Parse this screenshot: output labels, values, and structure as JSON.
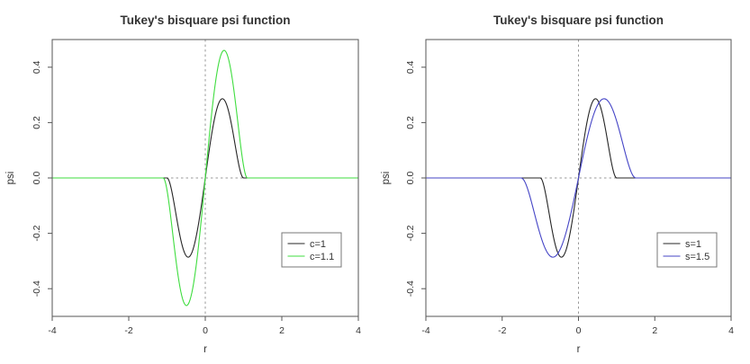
{
  "window": {
    "background": "#ffffff"
  },
  "chart_data": [
    {
      "panel": "left",
      "type": "line",
      "title": "Tukey's bisquare psi function",
      "xlabel": "r",
      "ylabel": "psi",
      "xlim": [
        -4,
        4
      ],
      "ylim": [
        -0.5,
        0.5
      ],
      "x_ticks": [
        -4,
        -2,
        0,
        2,
        4
      ],
      "x_tick_labels": [
        "-4",
        "-2",
        "0",
        "2",
        "4"
      ],
      "y_ticks": [
        -0.4,
        -0.2,
        0.0,
        0.2,
        0.4
      ],
      "y_tick_labels": [
        "-0.4",
        "-0.2",
        "0.0",
        "0.2",
        "0.4"
      ],
      "grid": false,
      "reference_lines": [
        {
          "axis": "h",
          "value": 0,
          "style": "dashed",
          "color": "#999999"
        },
        {
          "axis": "v",
          "value": 0,
          "style": "dashed",
          "color": "#999999"
        }
      ],
      "function_family": "psi(r) = amp * r * (1 - (r/k)^2)^2 for |r| <= k, else 0",
      "series": [
        {
          "name": "c=1",
          "color": "#262626",
          "k": 1.0,
          "amp": 1.0,
          "peak": {
            "r": 0.447,
            "psi": 0.286
          },
          "odd_symmetry": true,
          "sample_points_r_ge_0": [
            [
              0,
              0
            ],
            [
              0.125,
              0.1211
            ],
            [
              0.25,
              0.2197
            ],
            [
              0.375,
              0.2769
            ],
            [
              0.447,
              0.2862
            ],
            [
              0.5,
              0.2813
            ],
            [
              0.625,
              0.2321
            ],
            [
              0.75,
              0.1436
            ],
            [
              0.875,
              0.0481
            ],
            [
              1.0,
              0
            ],
            [
              4.0,
              0
            ]
          ]
        },
        {
          "name": "c=1.1",
          "color": "#3fdd3f",
          "k": 1.1,
          "amp": 1.4641,
          "peak": {
            "r": 0.492,
            "psi": 0.461
          },
          "odd_symmetry": true,
          "sample_points_r_ge_0": [
            [
              0,
              0
            ],
            [
              0.1375,
              0.1951
            ],
            [
              0.275,
              0.3539
            ],
            [
              0.4125,
              0.446
            ],
            [
              0.492,
              0.4609
            ],
            [
              0.55,
              0.453
            ],
            [
              0.6875,
              0.3738
            ],
            [
              0.825,
              0.2312
            ],
            [
              0.9625,
              0.0774
            ],
            [
              1.1,
              0
            ],
            [
              4.0,
              0
            ]
          ]
        }
      ],
      "legend": {
        "position": "inside-right-lower",
        "entries": [
          {
            "label": "c=1",
            "color": "#262626"
          },
          {
            "label": "c=1.1",
            "color": "#3fdd3f"
          }
        ]
      }
    },
    {
      "panel": "right",
      "type": "line",
      "title": "Tukey's bisquare psi function",
      "xlabel": "r",
      "ylabel": "psi",
      "xlim": [
        -4,
        4
      ],
      "ylim": [
        -0.5,
        0.5
      ],
      "x_ticks": [
        -4,
        -2,
        0,
        2,
        4
      ],
      "x_tick_labels": [
        "-4",
        "-2",
        "0",
        "2",
        "4"
      ],
      "y_ticks": [
        -0.4,
        -0.2,
        0.0,
        0.2,
        0.4
      ],
      "y_tick_labels": [
        "-0.4",
        "-0.2",
        "0.0",
        "0.2",
        "0.4"
      ],
      "grid": false,
      "reference_lines": [
        {
          "axis": "h",
          "value": 0,
          "style": "dashed",
          "color": "#999999"
        },
        {
          "axis": "v",
          "value": 0,
          "style": "dashed",
          "color": "#999999"
        }
      ],
      "function_family": "psi(r) = amp * r * (1 - (r/k)^2)^2 for |r| <= k, else 0",
      "series": [
        {
          "name": "s=1",
          "color": "#262626",
          "k": 1.0,
          "amp": 1.0,
          "peak": {
            "r": 0.447,
            "psi": 0.286
          },
          "odd_symmetry": true,
          "sample_points_r_ge_0": [
            [
              0,
              0
            ],
            [
              0.125,
              0.1211
            ],
            [
              0.25,
              0.2197
            ],
            [
              0.375,
              0.2769
            ],
            [
              0.447,
              0.2862
            ],
            [
              0.5,
              0.2813
            ],
            [
              0.625,
              0.2321
            ],
            [
              0.75,
              0.1436
            ],
            [
              0.875,
              0.0481
            ],
            [
              1.0,
              0
            ],
            [
              4.0,
              0
            ]
          ]
        },
        {
          "name": "s=1.5",
          "color": "#4545c6",
          "k": 1.5,
          "amp": 0.6667,
          "peak": {
            "r": 0.671,
            "psi": 0.286
          },
          "odd_symmetry": true,
          "sample_points_r_ge_0": [
            [
              0,
              0
            ],
            [
              0.1875,
              0.1211
            ],
            [
              0.375,
              0.2197
            ],
            [
              0.5625,
              0.2769
            ],
            [
              0.671,
              0.2862
            ],
            [
              0.75,
              0.2813
            ],
            [
              0.9375,
              0.2321
            ],
            [
              1.125,
              0.1436
            ],
            [
              1.3125,
              0.0481
            ],
            [
              1.5,
              0
            ],
            [
              4.0,
              0
            ]
          ]
        }
      ],
      "legend": {
        "position": "inside-right-lower",
        "entries": [
          {
            "label": "s=1",
            "color": "#262626"
          },
          {
            "label": "s=1.5",
            "color": "#4545c6"
          }
        ]
      }
    }
  ],
  "style_colors": {
    "axis": "#555555",
    "tick_text": "#333333",
    "title_text": "#111111",
    "legend_border": "#777777"
  }
}
